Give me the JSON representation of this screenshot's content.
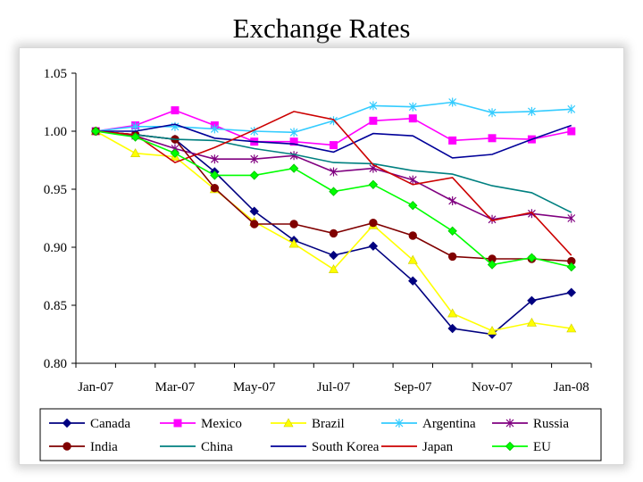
{
  "title": "Exchange Rates",
  "chart_data": {
    "type": "line",
    "xlabel": "",
    "ylabel": "",
    "x_months": 13,
    "x_tick_labels": [
      "Jan-07",
      "Mar-07",
      "May-07",
      "Jul-07",
      "Sep-07",
      "Nov-07",
      "Jan-08"
    ],
    "y_tick_labels": [
      "0.80",
      "0.85",
      "0.90",
      "0.95",
      "1.00",
      "1.05"
    ],
    "ylim": [
      0.8,
      1.05
    ],
    "grid": false,
    "legend_position": "bottom",
    "series": [
      {
        "name": "Canada",
        "color": "#000080",
        "marker": "diamond",
        "values": [
          1.0,
          0.997,
          0.993,
          0.965,
          0.931,
          0.906,
          0.893,
          0.901,
          0.871,
          0.83,
          0.825,
          0.854,
          0.861
        ]
      },
      {
        "name": "Mexico",
        "color": "#ff00ff",
        "marker": "square",
        "values": [
          1.0,
          1.005,
          1.018,
          1.005,
          0.991,
          0.991,
          0.988,
          1.009,
          1.011,
          0.992,
          0.994,
          0.993,
          1.0
        ]
      },
      {
        "name": "Brazil",
        "color": "#ffff00",
        "marker": "triangle",
        "values": [
          1.0,
          0.981,
          0.978,
          0.95,
          0.922,
          0.903,
          0.881,
          0.919,
          0.889,
          0.843,
          0.828,
          0.835,
          0.83
        ]
      },
      {
        "name": "Argentina",
        "color": "#33ccff",
        "marker": "asterisk",
        "values": [
          1.0,
          1.004,
          1.004,
          1.002,
          1.0,
          0.999,
          1.009,
          1.022,
          1.021,
          1.025,
          1.016,
          1.017,
          1.019
        ]
      },
      {
        "name": "Russia",
        "color": "#800080",
        "marker": "asterisk",
        "values": [
          1.0,
          0.996,
          0.985,
          0.976,
          0.976,
          0.979,
          0.965,
          0.968,
          0.958,
          0.94,
          0.924,
          0.929,
          0.925
        ]
      },
      {
        "name": "India",
        "color": "#800000",
        "marker": "circle",
        "values": [
          1.0,
          0.997,
          0.993,
          0.951,
          0.92,
          0.92,
          0.912,
          0.921,
          0.91,
          0.892,
          0.89,
          0.89,
          0.888
        ]
      },
      {
        "name": "China",
        "color": "#008080",
        "marker": "none",
        "values": [
          1.0,
          0.997,
          0.993,
          0.992,
          0.985,
          0.98,
          0.973,
          0.972,
          0.966,
          0.963,
          0.953,
          0.947,
          0.93
        ]
      },
      {
        "name": "South Korea",
        "color": "#000099",
        "marker": "none",
        "values": [
          1.0,
          1.0,
          1.006,
          0.994,
          0.991,
          0.989,
          0.982,
          0.998,
          0.996,
          0.977,
          0.98,
          0.993,
          1.005
        ]
      },
      {
        "name": "Japan",
        "color": "#cc0000",
        "marker": "none",
        "values": [
          1.0,
          0.997,
          0.973,
          0.986,
          1.001,
          1.017,
          1.01,
          0.971,
          0.954,
          0.96,
          0.923,
          0.93,
          0.893
        ]
      },
      {
        "name": "EU",
        "color": "#00ff00",
        "marker": "diamond",
        "values": [
          1.0,
          0.995,
          0.981,
          0.962,
          0.962,
          0.968,
          0.948,
          0.954,
          0.936,
          0.914,
          0.885,
          0.891,
          0.883
        ]
      }
    ]
  }
}
